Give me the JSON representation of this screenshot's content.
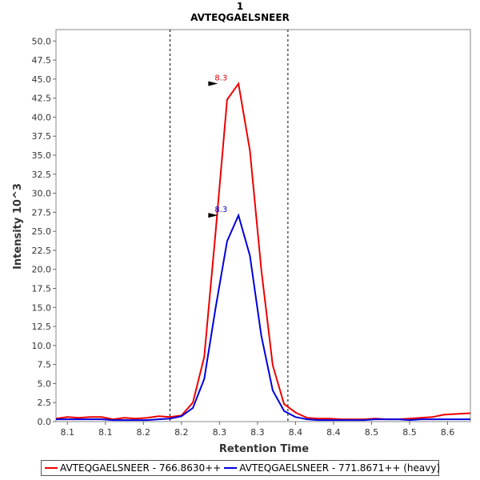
{
  "chart_data": {
    "type": "line",
    "title": "1",
    "subtitle": "AVTEQGAELSNEER",
    "xlabel": "Retention Time",
    "ylabel": "Intensity 10^3",
    "xlim": [
      8.085,
      8.63
    ],
    "ylim": [
      0,
      51.5
    ],
    "x_ticks": [
      "8.1",
      "8.1",
      "8.2",
      "8.2",
      "8.3",
      "8.3",
      "8.4",
      "8.4",
      "8.5",
      "8.5",
      "8.6"
    ],
    "x_tick_values": [
      8.1,
      8.15,
      8.2,
      8.25,
      8.3,
      8.35,
      8.4,
      8.45,
      8.5,
      8.55,
      8.6
    ],
    "y_ticks": [
      "0.0",
      "2.5",
      "5.0",
      "7.5",
      "10.0",
      "12.5",
      "15.0",
      "17.5",
      "20.0",
      "22.5",
      "25.0",
      "27.5",
      "30.0",
      "32.5",
      "35.0",
      "37.5",
      "40.0",
      "42.5",
      "45.0",
      "47.5",
      "50.0"
    ],
    "y_tick_values": [
      0,
      2.5,
      5,
      7.5,
      10,
      12.5,
      15,
      17.5,
      20,
      22.5,
      25,
      27.5,
      30,
      32.5,
      35,
      37.5,
      40,
      42.5,
      45,
      47.5,
      50
    ],
    "boundaries": [
      8.235,
      8.39
    ],
    "grid": false,
    "legend_placement": "bottom",
    "series": [
      {
        "name": "AVTEQGAELSNEER - 766.8630++",
        "color": "#ee0000",
        "x": [
          8.085,
          8.1,
          8.115,
          8.13,
          8.145,
          8.16,
          8.175,
          8.19,
          8.205,
          8.22,
          8.235,
          8.25,
          8.265,
          8.28,
          8.295,
          8.31,
          8.325,
          8.34,
          8.355,
          8.37,
          8.385,
          8.4,
          8.415,
          8.43,
          8.445,
          8.46,
          8.475,
          8.49,
          8.505,
          8.52,
          8.535,
          8.55,
          8.565,
          8.58,
          8.595,
          8.61,
          8.63
        ],
        "y": [
          0.4,
          0.6,
          0.5,
          0.6,
          0.6,
          0.3,
          0.5,
          0.4,
          0.5,
          0.7,
          0.6,
          0.8,
          2.5,
          8.5,
          25.0,
          42.3,
          44.4,
          35.6,
          20.0,
          7.4,
          2.3,
          1.2,
          0.5,
          0.4,
          0.4,
          0.3,
          0.3,
          0.3,
          0.4,
          0.3,
          0.3,
          0.4,
          0.5,
          0.6,
          0.9,
          1.0,
          1.1
        ],
        "peak": {
          "x": 8.3,
          "y": 44.4,
          "label": "8.3"
        }
      },
      {
        "name": "AVTEQGAELSNEER - 771.8671++ (heavy)",
        "color": "#0000dd",
        "x": [
          8.085,
          8.1,
          8.115,
          8.13,
          8.145,
          8.16,
          8.175,
          8.19,
          8.205,
          8.22,
          8.235,
          8.25,
          8.265,
          8.28,
          8.295,
          8.31,
          8.325,
          8.34,
          8.355,
          8.37,
          8.385,
          8.4,
          8.415,
          8.43,
          8.445,
          8.46,
          8.475,
          8.49,
          8.505,
          8.52,
          8.535,
          8.55,
          8.565,
          8.58,
          8.595,
          8.61,
          8.63
        ],
        "y": [
          0.3,
          0.3,
          0.3,
          0.3,
          0.3,
          0.2,
          0.2,
          0.2,
          0.2,
          0.3,
          0.4,
          0.7,
          1.8,
          5.6,
          15.0,
          23.7,
          27.1,
          21.8,
          11.3,
          4.1,
          1.4,
          0.6,
          0.3,
          0.2,
          0.2,
          0.2,
          0.2,
          0.2,
          0.3,
          0.3,
          0.3,
          0.2,
          0.3,
          0.3,
          0.3,
          0.3,
          0.3
        ],
        "peak": {
          "x": 8.3,
          "y": 27.1,
          "label": "8.3"
        }
      }
    ]
  }
}
